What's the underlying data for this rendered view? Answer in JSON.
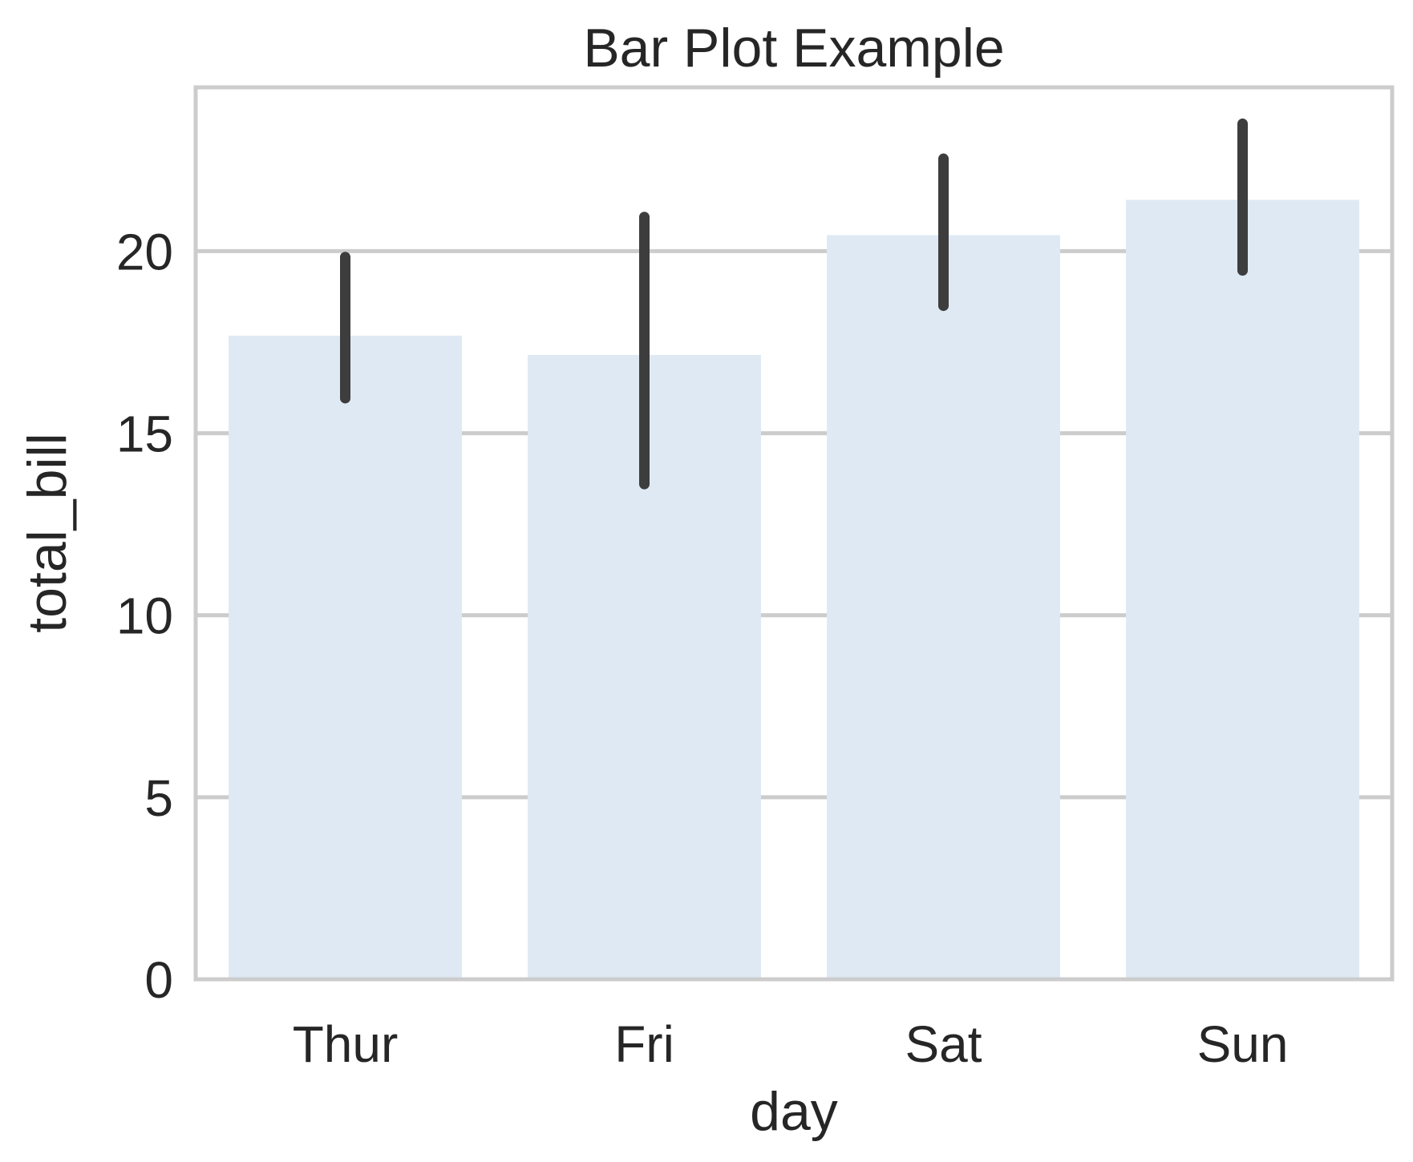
{
  "chart_data": {
    "type": "bar",
    "title": "Bar Plot Example",
    "xlabel": "day",
    "ylabel": "total_bill",
    "categories": [
      "Thur",
      "Fri",
      "Sat",
      "Sun"
    ],
    "values": [
      17.68,
      17.15,
      20.44,
      21.41
    ],
    "error_low": [
      15.96,
      13.6,
      18.5,
      19.47
    ],
    "error_high": [
      19.84,
      20.94,
      22.54,
      23.5
    ],
    "ylim": [
      0,
      24.5
    ],
    "yticks": [
      0,
      5,
      10,
      15,
      20
    ],
    "ytick_labels": [
      "0",
      "5",
      "10",
      "15",
      "20"
    ],
    "grid": true,
    "colors": {
      "bar": "#dfe9f3",
      "error": "#3d3d3d",
      "grid": "#cccccc",
      "axes": "#cccccc",
      "text": "#262626"
    }
  }
}
